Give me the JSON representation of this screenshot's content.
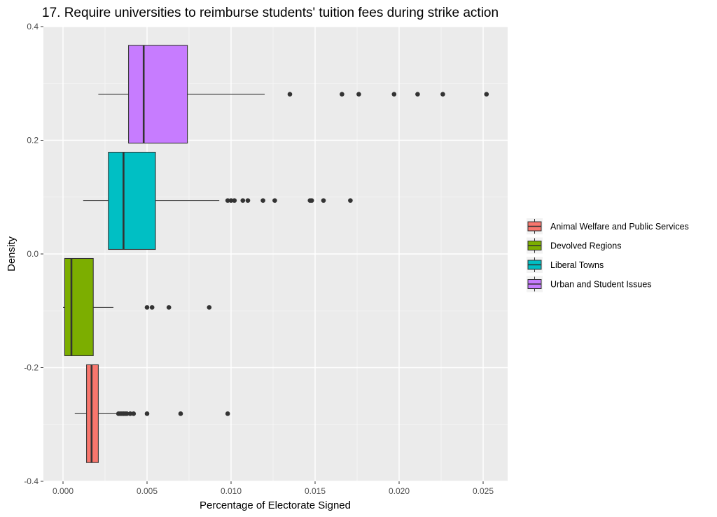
{
  "chart_data": {
    "type": "boxplot",
    "title": "17. Require universities to reimburse students' tuition fees during strike action",
    "xlabel": "Percentage of Electorate Signed",
    "ylabel": "Density",
    "xlim": [
      -0.0012,
      0.0265
    ],
    "ylim": [
      -0.4,
      0.4
    ],
    "x_ticks": [
      0.0,
      0.005,
      0.01,
      0.015,
      0.02,
      0.025
    ],
    "x_tick_labels": [
      "0.000",
      "0.005",
      "0.010",
      "0.015",
      "0.020",
      "0.025"
    ],
    "y_ticks": [
      -0.4,
      -0.2,
      0.0,
      0.2,
      0.4
    ],
    "y_tick_labels": [
      "-0.4",
      "-0.2",
      "0.0",
      "0.2",
      "0.4"
    ],
    "grid": true,
    "legend_position": "right",
    "series": [
      {
        "name": "Animal Welfare and Public Services",
        "color": "#F8766D",
        "y_center": -0.281,
        "box_ymin": -0.367,
        "box_ymax": -0.195,
        "whisker_low": 0.0007,
        "q1": 0.0014,
        "median": 0.0017,
        "q3": 0.0021,
        "whisker_high": 0.0032,
        "outliers": [
          0.0033,
          0.0034,
          0.0035,
          0.0036,
          0.0037,
          0.0038,
          0.004,
          0.0042,
          0.005,
          0.007,
          0.0098
        ]
      },
      {
        "name": "Devolved Regions",
        "color": "#7CAE00",
        "y_center": -0.094,
        "box_ymin": -0.179,
        "box_ymax": -0.008,
        "whisker_low": 0.0,
        "q1": 0.0001,
        "median": 0.0005,
        "q3": 0.0018,
        "whisker_high": 0.003,
        "outliers": [
          0.005,
          0.0053,
          0.0063,
          0.0087
        ]
      },
      {
        "name": "Liberal Towns",
        "color": "#00BFC4",
        "y_center": 0.094,
        "box_ymin": 0.008,
        "box_ymax": 0.179,
        "whisker_low": 0.0012,
        "q1": 0.0027,
        "median": 0.0036,
        "q3": 0.0055,
        "whisker_high": 0.0093,
        "outliers": [
          0.0098,
          0.01,
          0.0102,
          0.0107,
          0.011,
          0.0119,
          0.0126,
          0.0147,
          0.0148,
          0.0155,
          0.0171
        ]
      },
      {
        "name": "Urban and Student Issues",
        "color": "#C77CFF",
        "y_center": 0.281,
        "box_ymin": 0.195,
        "box_ymax": 0.367,
        "whisker_low": 0.0021,
        "q1": 0.0039,
        "median": 0.0048,
        "q3": 0.0074,
        "whisker_high": 0.012,
        "outliers": [
          0.0135,
          0.0166,
          0.0176,
          0.0197,
          0.0211,
          0.0226,
          0.0252
        ]
      }
    ]
  }
}
